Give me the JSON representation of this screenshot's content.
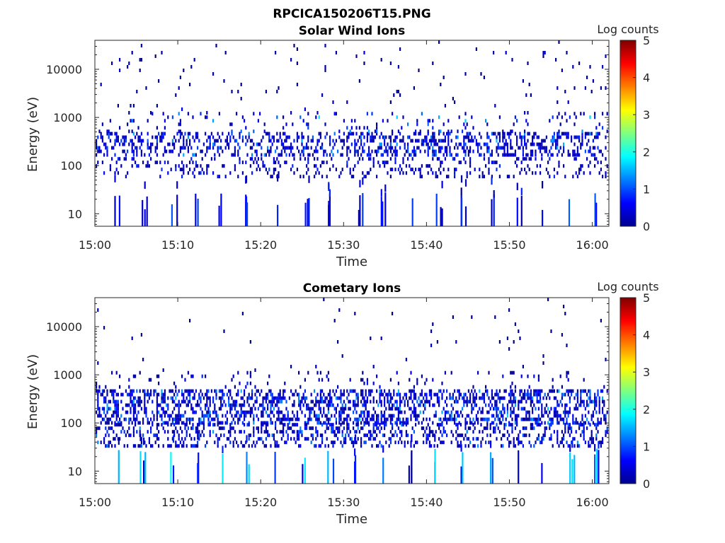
{
  "figure_title": "RPCICA150206T15.PNG",
  "chart_data": [
    {
      "type": "heatmap",
      "title": "Solar Wind Ions",
      "xlabel": "Time",
      "ylabel": "Energy (eV)",
      "x_ticks": [
        "15:00",
        "15:10",
        "15:20",
        "15:30",
        "15:40",
        "15:50",
        "16:00"
      ],
      "x_range_minutes": [
        0,
        62
      ],
      "y_scale": "log",
      "y_range": [
        5.5,
        40000
      ],
      "y_ticks": [
        10,
        100,
        1000,
        10000
      ],
      "y_tick_labels": [
        "10",
        "100",
        "1000",
        "10000"
      ],
      "colorbar": {
        "label": "Log counts",
        "min": 0,
        "max": 5,
        "ticks": [
          "0",
          "1",
          "2",
          "3",
          "4",
          "5"
        ],
        "colormap": "jet"
      },
      "bands": [
        {
          "energy_min": 150,
          "energy_max": 500,
          "density": 0.35,
          "level_min": 0.1,
          "level_max": 1.6
        },
        {
          "energy_min": 60,
          "energy_max": 150,
          "density": 0.18,
          "level_min": 0.1,
          "level_max": 1.0
        },
        {
          "energy_min": 500,
          "energy_max": 1300,
          "density": 0.07,
          "level_min": 0.1,
          "level_max": 1.9
        },
        {
          "energy_min": 1300,
          "energy_max": 40000,
          "density": 0.018,
          "level_min": 0.05,
          "level_max": 0.6
        }
      ],
      "low_energy_spikes_minutes": [
        2.5,
        6,
        9.5,
        12,
        15,
        18.5,
        22,
        25.5,
        28.5,
        32,
        34.8,
        38.5,
        41.5,
        44.5,
        48,
        51,
        54,
        57.5,
        60.5
      ]
    },
    {
      "type": "heatmap",
      "title": "Cometary Ions",
      "xlabel": "Time",
      "ylabel": "Energy (eV)",
      "x_ticks": [
        "15:00",
        "15:10",
        "15:20",
        "15:30",
        "15:40",
        "15:50",
        "16:00"
      ],
      "x_range_minutes": [
        0,
        62
      ],
      "y_scale": "log",
      "y_range": [
        5.5,
        40000
      ],
      "y_ticks": [
        10,
        100,
        1000,
        10000
      ],
      "y_tick_labels": [
        "10",
        "100",
        "1000",
        "10000"
      ],
      "colorbar": {
        "label": "Log counts",
        "min": 0,
        "max": 5,
        "ticks": [
          "0",
          "1",
          "2",
          "3",
          "4",
          "5"
        ],
        "colormap": "jet"
      },
      "bands": [
        {
          "energy_min": 100,
          "energy_max": 500,
          "density": 0.42,
          "level_min": 0.1,
          "level_max": 1.7
        },
        {
          "energy_min": 30,
          "energy_max": 100,
          "density": 0.3,
          "level_min": 0.1,
          "level_max": 1.5
        },
        {
          "energy_min": 500,
          "energy_max": 1200,
          "density": 0.06,
          "level_min": 0.05,
          "level_max": 0.9
        },
        {
          "energy_min": 1200,
          "energy_max": 40000,
          "density": 0.008,
          "level_min": 0.05,
          "level_max": 0.5
        }
      ],
      "low_energy_spikes_minutes": [
        2.5,
        5.8,
        9,
        12,
        15.2,
        18.5,
        21.8,
        25,
        28.3,
        31.6,
        34.8,
        38,
        41.3,
        44.5,
        47.8,
        51,
        54.2,
        57.5,
        60.5
      ]
    }
  ]
}
